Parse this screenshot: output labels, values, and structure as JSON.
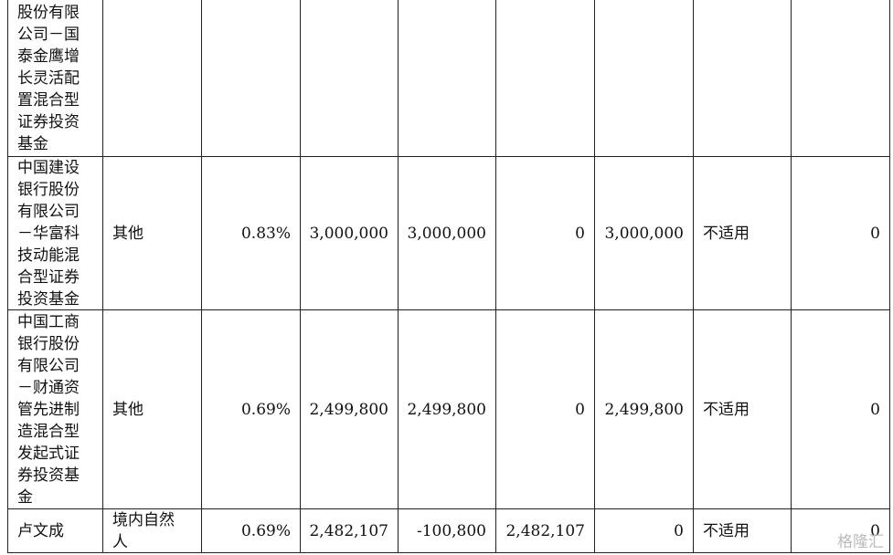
{
  "table": {
    "rows": [
      [
        "股份有限公司－国泰金鹰增长灵活配置混合型证券投资基金"
      ],
      [
        "中国建设银行股份有限公司－华富科技动能混合型证券投资基金",
        "其他",
        "0.83%",
        "3,000,000",
        "3,000,000",
        "0",
        "3,000,000",
        "不适用",
        "0"
      ],
      [
        "中国工商银行股份有限公司－财通资管先进制造混合型发起式证券投资基金",
        "其他",
        "0.69%",
        "2,499,800",
        "2,499,800",
        "0",
        "2,499,800",
        "不适用",
        "0"
      ],
      [
        "卢文成",
        "境内自然人",
        "0.69%",
        "2,482,107",
        "-100,800",
        "2,482,107",
        "0",
        "不适用",
        "0"
      ]
    ]
  },
  "watermark": "格隆汇"
}
